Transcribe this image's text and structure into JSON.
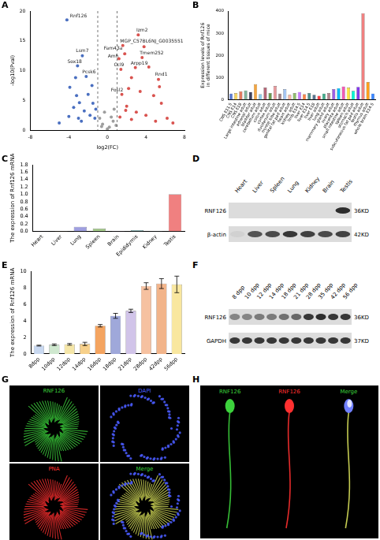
{
  "chart_data": [
    {
      "panel": "A",
      "type": "scatter",
      "x_label": "log2(FC)",
      "y_label": "-log10(Pval)",
      "xlim": [
        -8,
        8
      ],
      "xticks": [
        -8,
        -4,
        0,
        4,
        8
      ],
      "ylim": [
        0,
        20
      ],
      "yticks": [
        0,
        5,
        10,
        15,
        20
      ],
      "grid": false,
      "vlines": [
        -1,
        1
      ],
      "series": [
        {
          "color": "#4a6fc0",
          "x": [
            -4.2,
            -2.6,
            -3.1,
            -3.3,
            -3.9,
            -2.2,
            -3.2,
            -3.5,
            -2.0,
            -1.5,
            -2.4,
            -1.8,
            -3.0,
            -4.0,
            -2.7,
            -1.3,
            -1.6,
            -1.2,
            -5.0,
            -2.9
          ],
          "values": [
            18.5,
            12.5,
            10.8,
            8.8,
            7.2,
            9.0,
            5.8,
            3.8,
            6.0,
            4.5,
            3.2,
            2.5,
            2.0,
            2.3,
            1.5,
            2.0,
            7.5,
            3.5,
            1.2,
            4.6
          ]
        },
        {
          "color": "#d9534f",
          "x": [
            3.2,
            1.6,
            3.8,
            1.8,
            1.2,
            3.6,
            1.4,
            2.9,
            4.3,
            2.5,
            5.3,
            5.4,
            2.2,
            1.5,
            3.4,
            4.8,
            5.6,
            2.0,
            3.0,
            4.0,
            1.3,
            6.2,
            5.0,
            2.5,
            6.8,
            1.9
          ],
          "values": [
            16.0,
            14.2,
            14.0,
            12.8,
            12.0,
            12.2,
            10.2,
            10.5,
            10.6,
            8.8,
            8.5,
            7.3,
            7.0,
            6.0,
            6.5,
            5.8,
            4.5,
            4.0,
            3.0,
            2.5,
            2.2,
            2.0,
            1.5,
            1.8,
            1.2,
            3.3
          ]
        },
        {
          "color": "#9e9e9e",
          "x": [
            -0.5,
            0.2,
            0.6,
            -0.8,
            0.9,
            0.0,
            -0.3,
            0.4,
            -0.6,
            0.7
          ],
          "values": [
            1.0,
            0.5,
            1.5,
            2.0,
            0.8,
            0.2,
            3.0,
            2.2,
            0.6,
            3.5
          ]
        }
      ],
      "annotations": [
        {
          "text": "Rnf126",
          "x": -3.0,
          "y": 19.2
        },
        {
          "text": "Izm2",
          "x": 3.6,
          "y": 16.8
        },
        {
          "text": "Fam43a",
          "x": 0.6,
          "y": 13.7
        },
        {
          "text": "MGP_C57BL6NJ_G0035551",
          "x": 4.6,
          "y": 14.9
        },
        {
          "text": "Lsm7",
          "x": -2.6,
          "y": 13.3
        },
        {
          "text": "Amh",
          "x": 0.6,
          "y": 12.4
        },
        {
          "text": "Tmem252",
          "x": 4.6,
          "y": 12.9
        },
        {
          "text": "Sox18",
          "x": -3.4,
          "y": 11.5
        },
        {
          "text": "Pcsk6",
          "x": -1.9,
          "y": 9.7
        },
        {
          "text": "Ccl9",
          "x": 1.2,
          "y": 10.9
        },
        {
          "text": "Arpp19",
          "x": 3.3,
          "y": 11.2
        },
        {
          "text": "Fosl2",
          "x": 1.0,
          "y": 6.7
        },
        {
          "text": "Rnd1",
          "x": 5.6,
          "y": 9.3
        }
      ]
    },
    {
      "panel": "B",
      "type": "bar",
      "y_label": "Expression levels of Rnf126 in different tissues of mice",
      "categories": [
        "CNS E11.5",
        "CNS E14",
        "CNS E18",
        "Large intestine adult",
        "adrenal adult",
        "bladder adult",
        "cerebellum adult",
        "colon adult",
        "cortex adult",
        "duodenum adult",
        "frontal lobe adult",
        "genital fat pad adult",
        "heart adult",
        "kidney adult",
        "limb E14.5",
        "liver E14",
        "liver E14.5",
        "liver E18",
        "liver adult",
        "lung adult",
        "mammary gland adult",
        "ovary adult",
        "placenta adult",
        "small intestine adult",
        "spleen adult",
        "stomach adult",
        "subcutaneous fat pad adult",
        "testis adult",
        "thymus adult",
        "whole brain E14.5"
      ],
      "values": [
        28,
        30,
        38,
        42,
        35,
        70,
        25,
        55,
        30,
        62,
        28,
        48,
        22,
        30,
        35,
        25,
        30,
        22,
        18,
        28,
        30,
        48,
        52,
        60,
        55,
        40,
        58,
        390,
        80,
        28
      ],
      "colors": [
        "#5b7bd5",
        "#f4d35e",
        "#e07a5f",
        "#81b29a",
        "#3d405b",
        "#f2a541",
        "#8ecae6",
        "#b56576",
        "#6a994e",
        "#e5989b",
        "#9d8189",
        "#a3c4f3",
        "#ffb4a2",
        "#90be6d",
        "#c77dff",
        "#f9844a",
        "#4d908e",
        "#577590",
        "#f94144",
        "#43aa8b",
        "#b5838d",
        "#9b5de5",
        "#00bbf9",
        "#f15bb5",
        "#fee440",
        "#00f5d4",
        "#8338ec",
        "#f08080",
        "#ff9f1c",
        "#3a86ff"
      ],
      "ylim": [
        0,
        400
      ],
      "yticks": [
        0,
        100,
        200,
        300,
        400
      ],
      "grid": false
    },
    {
      "panel": "C",
      "type": "bar",
      "y_label": "The expression of Rnf126 mRNA",
      "categories": [
        "Heart",
        "Liver",
        "Lung",
        "Spleen",
        "Brain",
        "Epididymis",
        "Kidney",
        "Testis"
      ],
      "values": [
        0.005,
        0.01,
        0.12,
        0.07,
        0.01,
        0.03,
        0.01,
        1.0
      ],
      "colors": [
        "#8fa9d8",
        "#f2c46d",
        "#9f9fe0",
        "#a8d08d",
        "#c9a0dc",
        "#7fc4c4",
        "#9bb7e0",
        "#f08080"
      ],
      "ylim": [
        0,
        1.8
      ],
      "yticks": [
        {
          "value": 0,
          "label": "0.0"
        },
        {
          "value": 0.2,
          "label": "0.2"
        },
        {
          "value": 0.4,
          "label": "0.4"
        },
        {
          "value": 0.6,
          "label": "0.6"
        },
        {
          "value": 0.8,
          "label": "0.8"
        },
        {
          "value": 1,
          "label": "1.0"
        },
        {
          "value": 1.2,
          "label": "1.2"
        },
        {
          "value": 1.4,
          "label": "1.4"
        },
        {
          "value": 1.6,
          "label": "1.6"
        },
        {
          "value": 1.8,
          "label": "1.8"
        }
      ],
      "grid": false
    },
    {
      "panel": "E",
      "type": "bar",
      "y_label": "The expression of Rnf126 mRNA",
      "categories": [
        "8dpp",
        "10dpp",
        "12dpp",
        "14dpp",
        "16dpp",
        "18dpp",
        "21dpp",
        "28dpp",
        "42dpp",
        "56dpp"
      ],
      "values": [
        1.0,
        1.1,
        1.15,
        1.2,
        3.4,
        4.6,
        5.2,
        8.2,
        8.5,
        8.4
      ],
      "errors": [
        0.05,
        0.1,
        0.1,
        0.2,
        0.15,
        0.3,
        0.2,
        0.4,
        0.6,
        1.0
      ],
      "colors": [
        "#c8d8f0",
        "#cfe8cf",
        "#f5e6a8",
        "#f7d08a",
        "#f4a460",
        "#9fa8da",
        "#d1c4e9",
        "#f6c1a0",
        "#f2b48a",
        "#f9e79f"
      ],
      "ylim": [
        0,
        10
      ],
      "yticks": [
        0,
        2,
        4,
        6,
        8,
        10
      ],
      "grid": false
    }
  ],
  "blots": [
    {
      "panel": "D",
      "lanes": [
        "Heart",
        "Liver",
        "Spleen",
        "Lung",
        "Kidney",
        "Brain",
        "Testis"
      ],
      "rows": [
        {
          "name": "RNF126",
          "size": "36KD",
          "bands": [
            0,
            0,
            0,
            0,
            0,
            0,
            0.9
          ]
        },
        {
          "name": "β-actin",
          "size": "42KD",
          "bands": [
            0.05,
            0.7,
            0.75,
            0.85,
            0.8,
            0.75,
            0.8
          ]
        }
      ]
    },
    {
      "panel": "F",
      "lanes": [
        "8 dpp",
        "10 dpp",
        "12 dpp",
        "14 dpp",
        "18 dpp",
        "21 dpp",
        "28 dpp",
        "35 dpp",
        "42 dpp",
        "56 dpp"
      ],
      "rows": [
        {
          "name": "RNF126",
          "size": "36KD",
          "bands": [
            0.45,
            0.45,
            0.5,
            0.5,
            0.55,
            0.6,
            0.85,
            0.9,
            0.85,
            0.85
          ]
        },
        {
          "name": "GAPDH",
          "size": "37KD",
          "bands": [
            0.85,
            0.85,
            0.85,
            0.85,
            0.85,
            0.85,
            0.85,
            0.85,
            0.85,
            0.85
          ]
        }
      ]
    }
  ],
  "micrographs": [
    {
      "panel": "G",
      "channels": [
        {
          "label": "RNF126",
          "color": "#3cd23c"
        },
        {
          "label": "DAPI",
          "color": "#4a5cff"
        },
        {
          "label": "PNA",
          "color": "#ff3030"
        },
        {
          "label": "Merge",
          "color": "#3cd23c"
        }
      ]
    },
    {
      "panel": "H",
      "channels": [
        {
          "label": "RNF126",
          "color": "#3cd23c"
        },
        {
          "label": "RNF126",
          "color": "#ff3030"
        },
        {
          "label": "Merge",
          "color": "#3cd23c"
        }
      ]
    }
  ]
}
